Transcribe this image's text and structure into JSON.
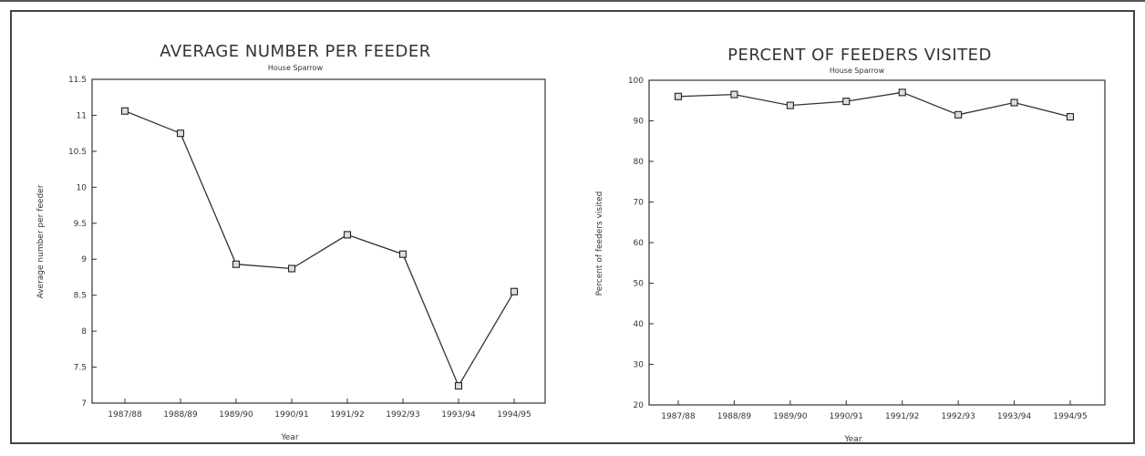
{
  "chart_data": [
    {
      "type": "line",
      "title": "AVERAGE NUMBER PER FEEDER",
      "subtitle": "House Sparrow",
      "xlabel": "Year",
      "ylabel": "Average number per feeder",
      "categories": [
        "1987/88",
        "1988/89",
        "1989/90",
        "1990/91",
        "1991/92",
        "1992/93",
        "1993/94",
        "1994/95"
      ],
      "series": [
        {
          "values": [
            11.06,
            10.75,
            8.93,
            8.87,
            9.34,
            9.07,
            7.24,
            8.55
          ]
        }
      ],
      "ylim": [
        7,
        11.5
      ],
      "yticks": [
        "7",
        "7.5",
        "8",
        "8.5",
        "9",
        "9.5",
        "10",
        "10.5",
        "11",
        "11.5"
      ],
      "grid": false,
      "marker": "square",
      "line_color": "#333333"
    },
    {
      "type": "line",
      "title": "PERCENT OF FEEDERS VISITED",
      "subtitle": "House Sparrow",
      "xlabel": "Year",
      "ylabel": "Percent of feeders visited",
      "categories": [
        "1987/88",
        "1988/89",
        "1989/90",
        "1990/91",
        "1991/92",
        "1992/93",
        "1993/94",
        "1994/95"
      ],
      "series": [
        {
          "values": [
            96,
            96.5,
            93.8,
            94.8,
            97,
            91.5,
            94.5,
            91
          ]
        }
      ],
      "ylim": [
        20,
        100
      ],
      "yticks": [
        "20",
        "30",
        "40",
        "50",
        "60",
        "70",
        "80",
        "90",
        "100"
      ],
      "grid": false,
      "marker": "square",
      "line_color": "#333333"
    }
  ]
}
